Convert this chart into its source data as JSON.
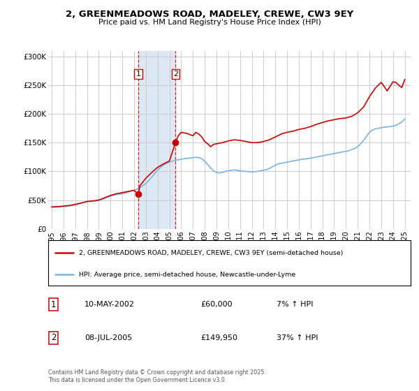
{
  "title": "2, GREENMEADOWS ROAD, MADELEY, CREWE, CW3 9EY",
  "subtitle": "Price paid vs. HM Land Registry's House Price Index (HPI)",
  "ylabel_ticks": [
    "£0",
    "£50K",
    "£100K",
    "£150K",
    "£200K",
    "£250K",
    "£300K"
  ],
  "ytick_values": [
    0,
    50000,
    100000,
    150000,
    200000,
    250000,
    300000
  ],
  "ylim": [
    0,
    310000
  ],
  "xlim_start": 1994.7,
  "xlim_end": 2025.5,
  "background_color": "#ffffff",
  "grid_color": "#cccccc",
  "transaction1": {
    "date": 2002.36,
    "price": 60000,
    "label": "1",
    "date_str": "10-MAY-2002",
    "price_str": "£60,000",
    "pct": "7% ↑ HPI"
  },
  "transaction2": {
    "date": 2005.52,
    "price": 149950,
    "label": "2",
    "date_str": "08-JUL-2005",
    "price_str": "£149,950",
    "pct": "37% ↑ HPI"
  },
  "shaded_region": [
    2002.36,
    2005.52
  ],
  "shaded_color": "#dce9f5",
  "red_line_color": "#cc0000",
  "blue_line_color": "#7ab4e0",
  "marker_color": "#cc0000",
  "legend_label_red": "2, GREENMEADOWS ROAD, MADELEY, CREWE, CW3 9EY (semi-detached house)",
  "legend_label_blue": "HPI: Average price, semi-detached house, Newcastle-under-Lyme",
  "footnote": "Contains HM Land Registry data © Crown copyright and database right 2025.\nThis data is licensed under the Open Government Licence v3.0.",
  "hpi_x": [
    1995,
    1995.25,
    1995.5,
    1995.75,
    1996,
    1996.25,
    1996.5,
    1996.75,
    1997,
    1997.25,
    1997.5,
    1997.75,
    1998,
    1998.25,
    1998.5,
    1998.75,
    1999,
    1999.25,
    1999.5,
    1999.75,
    2000,
    2000.25,
    2000.5,
    2000.75,
    2001,
    2001.25,
    2001.5,
    2001.75,
    2002,
    2002.25,
    2002.5,
    2002.75,
    2003,
    2003.25,
    2003.5,
    2003.75,
    2004,
    2004.25,
    2004.5,
    2004.75,
    2005,
    2005.25,
    2005.5,
    2005.75,
    2006,
    2006.25,
    2006.5,
    2006.75,
    2007,
    2007.25,
    2007.5,
    2007.75,
    2008,
    2008.25,
    2008.5,
    2008.75,
    2009,
    2009.25,
    2009.5,
    2009.75,
    2010,
    2010.25,
    2010.5,
    2010.75,
    2011,
    2011.25,
    2011.5,
    2011.75,
    2012,
    2012.25,
    2012.5,
    2012.75,
    2013,
    2013.25,
    2013.5,
    2013.75,
    2014,
    2014.25,
    2014.5,
    2014.75,
    2015,
    2015.25,
    2015.5,
    2015.75,
    2016,
    2016.25,
    2016.5,
    2016.75,
    2017,
    2017.25,
    2017.5,
    2017.75,
    2018,
    2018.25,
    2018.5,
    2018.75,
    2019,
    2019.25,
    2019.5,
    2019.75,
    2020,
    2020.25,
    2020.5,
    2020.75,
    2021,
    2021.25,
    2021.5,
    2021.75,
    2022,
    2022.25,
    2022.5,
    2022.75,
    2023,
    2023.25,
    2023.5,
    2023.75,
    2024,
    2024.25,
    2024.5,
    2024.75,
    2025
  ],
  "hpi_y": [
    38000,
    37500,
    37800,
    38200,
    38800,
    39200,
    39800,
    40500,
    41500,
    43000,
    44500,
    46000,
    47000,
    47500,
    48000,
    48500,
    49500,
    51000,
    53000,
    55000,
    57000,
    58500,
    59500,
    60000,
    61000,
    62500,
    64000,
    65500,
    67000,
    69000,
    72000,
    75000,
    79000,
    84000,
    90000,
    96000,
    102000,
    107000,
    111000,
    114000,
    116000,
    118000,
    119000,
    120000,
    121000,
    122000,
    122500,
    123000,
    124000,
    124500,
    124000,
    122000,
    118000,
    112000,
    106000,
    101000,
    98000,
    97000,
    98000,
    100000,
    101000,
    102000,
    102500,
    102000,
    101000,
    100500,
    100000,
    99500,
    99000,
    99500,
    100000,
    101000,
    102000,
    103000,
    105000,
    108000,
    111000,
    113000,
    114000,
    115000,
    116000,
    117000,
    118000,
    119000,
    120000,
    121000,
    121500,
    122000,
    123000,
    124000,
    125000,
    126000,
    127000,
    128000,
    129000,
    130000,
    131000,
    132000,
    133000,
    134000,
    135000,
    136000,
    138000,
    140000,
    143000,
    148000,
    154000,
    161000,
    168000,
    172000,
    174000,
    175000,
    176000,
    177000,
    177500,
    178000,
    179000,
    180000,
    183000,
    186000,
    191000
  ],
  "price_x": [
    1995,
    1995.5,
    1996,
    1996.5,
    1997,
    1997.5,
    1998,
    1998.5,
    1999,
    1999.5,
    2000,
    2000.5,
    2001,
    2001.5,
    2002,
    2002.36,
    2002.5,
    2003,
    2003.5,
    2004,
    2004.5,
    2005,
    2005.52,
    2005.75,
    2006,
    2006.5,
    2007,
    2007.25,
    2007.5,
    2007.75,
    2008,
    2008.25,
    2008.5,
    2008.75,
    2009,
    2009.5,
    2010,
    2010.5,
    2011,
    2011.5,
    2012,
    2012.5,
    2013,
    2013.5,
    2014,
    2014.5,
    2015,
    2015.5,
    2016,
    2016.5,
    2017,
    2017.5,
    2018,
    2018.5,
    2019,
    2019.5,
    2020,
    2020.5,
    2021,
    2021.5,
    2022,
    2022.5,
    2023,
    2023.25,
    2023.5,
    2023.75,
    2024,
    2024.25,
    2024.5,
    2024.75,
    2025
  ],
  "price_y": [
    38000,
    38500,
    39500,
    40500,
    42500,
    44800,
    47500,
    48500,
    50000,
    54000,
    58000,
    61000,
    63000,
    65000,
    67000,
    60000,
    75000,
    88000,
    98000,
    107000,
    113000,
    118000,
    149950,
    162000,
    168000,
    166000,
    162000,
    168000,
    165000,
    160000,
    152000,
    148000,
    143000,
    147000,
    148000,
    150000,
    153000,
    155000,
    154000,
    152000,
    150000,
    150000,
    152000,
    155000,
    160000,
    165000,
    168000,
    170000,
    173000,
    175000,
    178000,
    182000,
    185000,
    188000,
    190000,
    192000,
    193000,
    196000,
    202000,
    212000,
    230000,
    245000,
    255000,
    248000,
    240000,
    248000,
    256000,
    255000,
    250000,
    246000,
    260000
  ]
}
